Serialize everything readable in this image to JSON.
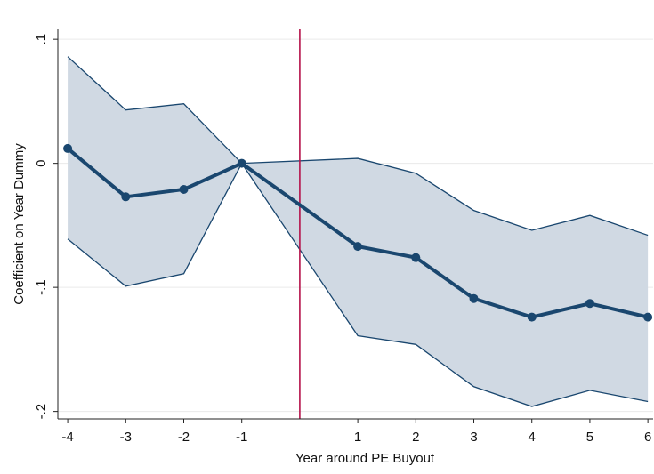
{
  "chart_data": {
    "type": "line",
    "x_label": "Year around PE Buyout",
    "y_label": "Coefficient on Year Dummy",
    "x": [
      -4,
      -3,
      -2,
      -1,
      1,
      2,
      3,
      4,
      5,
      6
    ],
    "values": [
      0.012,
      -0.027,
      -0.021,
      0,
      -0.067,
      -0.076,
      -0.109,
      -0.124,
      -0.113,
      -0.124
    ],
    "ci_upper": [
      0.086,
      0.043,
      0.048,
      0,
      0.004,
      -0.008,
      -0.038,
      -0.054,
      -0.042,
      -0.058
    ],
    "ci_lower": [
      -0.061,
      -0.099,
      -0.089,
      0,
      -0.139,
      -0.146,
      -0.18,
      -0.196,
      -0.183,
      -0.192
    ],
    "color": "#1a476f",
    "band_color": "#d0d9e3",
    "vline": {
      "x": 0,
      "color": "#b5124a"
    },
    "xlim": [
      -4.17,
      6.09
    ],
    "ylim": [
      -0.206,
      0.108
    ],
    "xticks": [
      -4,
      -3,
      -2,
      -1,
      1,
      2,
      3,
      4,
      5,
      6
    ],
    "yticks": [
      {
        "value": -0.2,
        "label": "-.2"
      },
      {
        "value": -0.1,
        "label": "-.1"
      },
      0,
      {
        "value": 0.1,
        "label": ".1"
      }
    ],
    "grid": true
  }
}
